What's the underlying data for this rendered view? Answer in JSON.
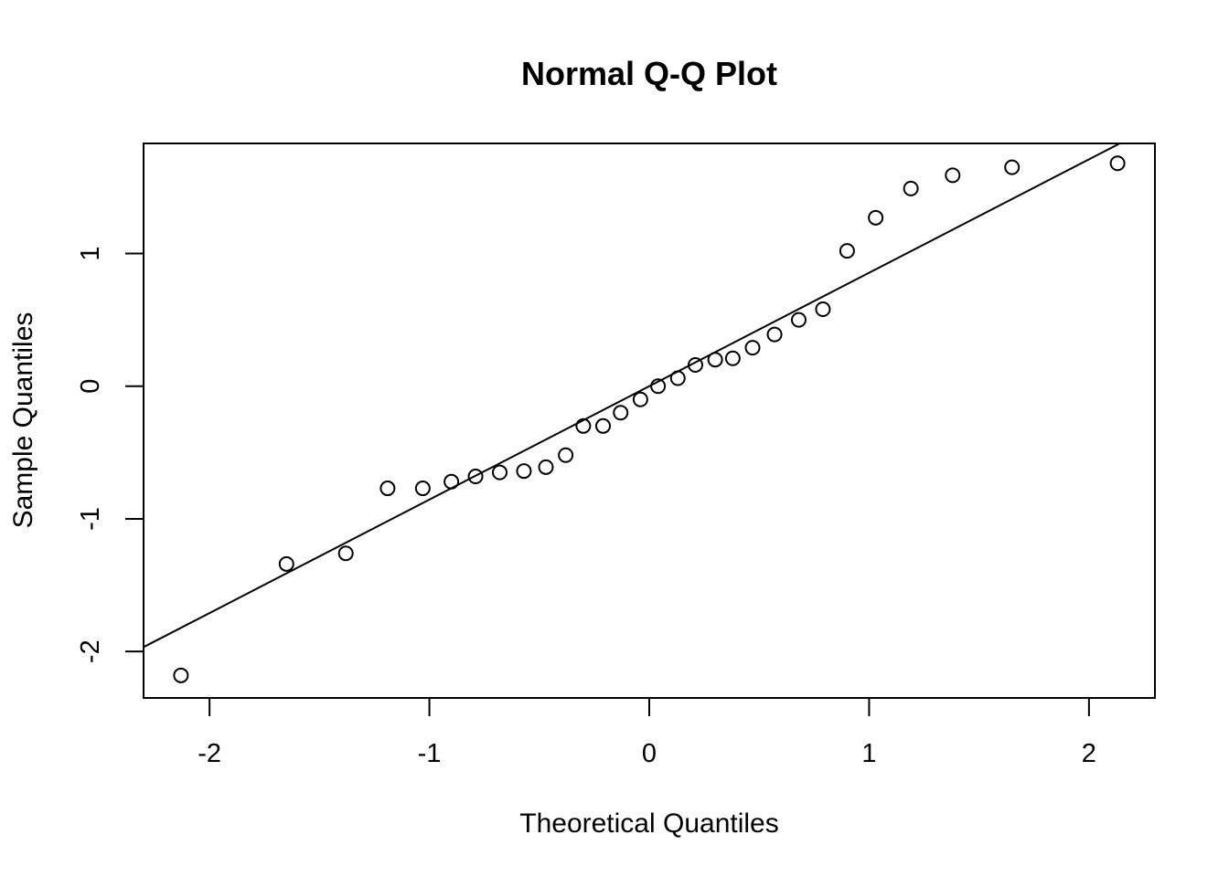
{
  "chart_data": {
    "type": "scatter",
    "title": "Normal Q-Q Plot",
    "xlabel": "Theoretical Quantiles",
    "ylabel": "Sample Quantiles",
    "xlim": [
      -2.3,
      2.3
    ],
    "ylim": [
      -2.35,
      1.83
    ],
    "x_ticks": [
      -2,
      -1,
      0,
      1,
      2
    ],
    "x_tick_labels": [
      "-2",
      "-1",
      "0",
      "1",
      "2"
    ],
    "y_ticks": [
      -2,
      -1,
      0,
      1
    ],
    "y_tick_labels": [
      "-2",
      "-1",
      "0",
      "1"
    ],
    "grid": false,
    "point_style": "open-circle",
    "series": [
      {
        "x": [
          -2.13,
          -1.65,
          -1.38,
          -1.19,
          -1.03,
          -0.9,
          -0.79,
          -0.68,
          -0.57,
          -0.47,
          -0.38,
          -0.3,
          -0.21,
          -0.13,
          -0.04,
          0.04,
          0.13,
          0.21,
          0.3,
          0.38,
          0.47,
          0.57,
          0.68,
          0.79,
          0.9,
          1.03,
          1.19,
          1.38,
          1.65,
          2.13
        ],
        "y": [
          -2.18,
          -1.34,
          -1.26,
          -0.77,
          -0.77,
          -0.72,
          -0.68,
          -0.65,
          -0.64,
          -0.61,
          -0.52,
          -0.3,
          -0.3,
          -0.2,
          -0.1,
          0.0,
          0.06,
          0.16,
          0.2,
          0.21,
          0.29,
          0.39,
          0.5,
          0.58,
          1.02,
          1.27,
          1.49,
          1.59,
          1.65,
          1.68
        ]
      }
    ],
    "reference_line": {
      "intercept": 0.0,
      "slope": 0.855
    }
  }
}
